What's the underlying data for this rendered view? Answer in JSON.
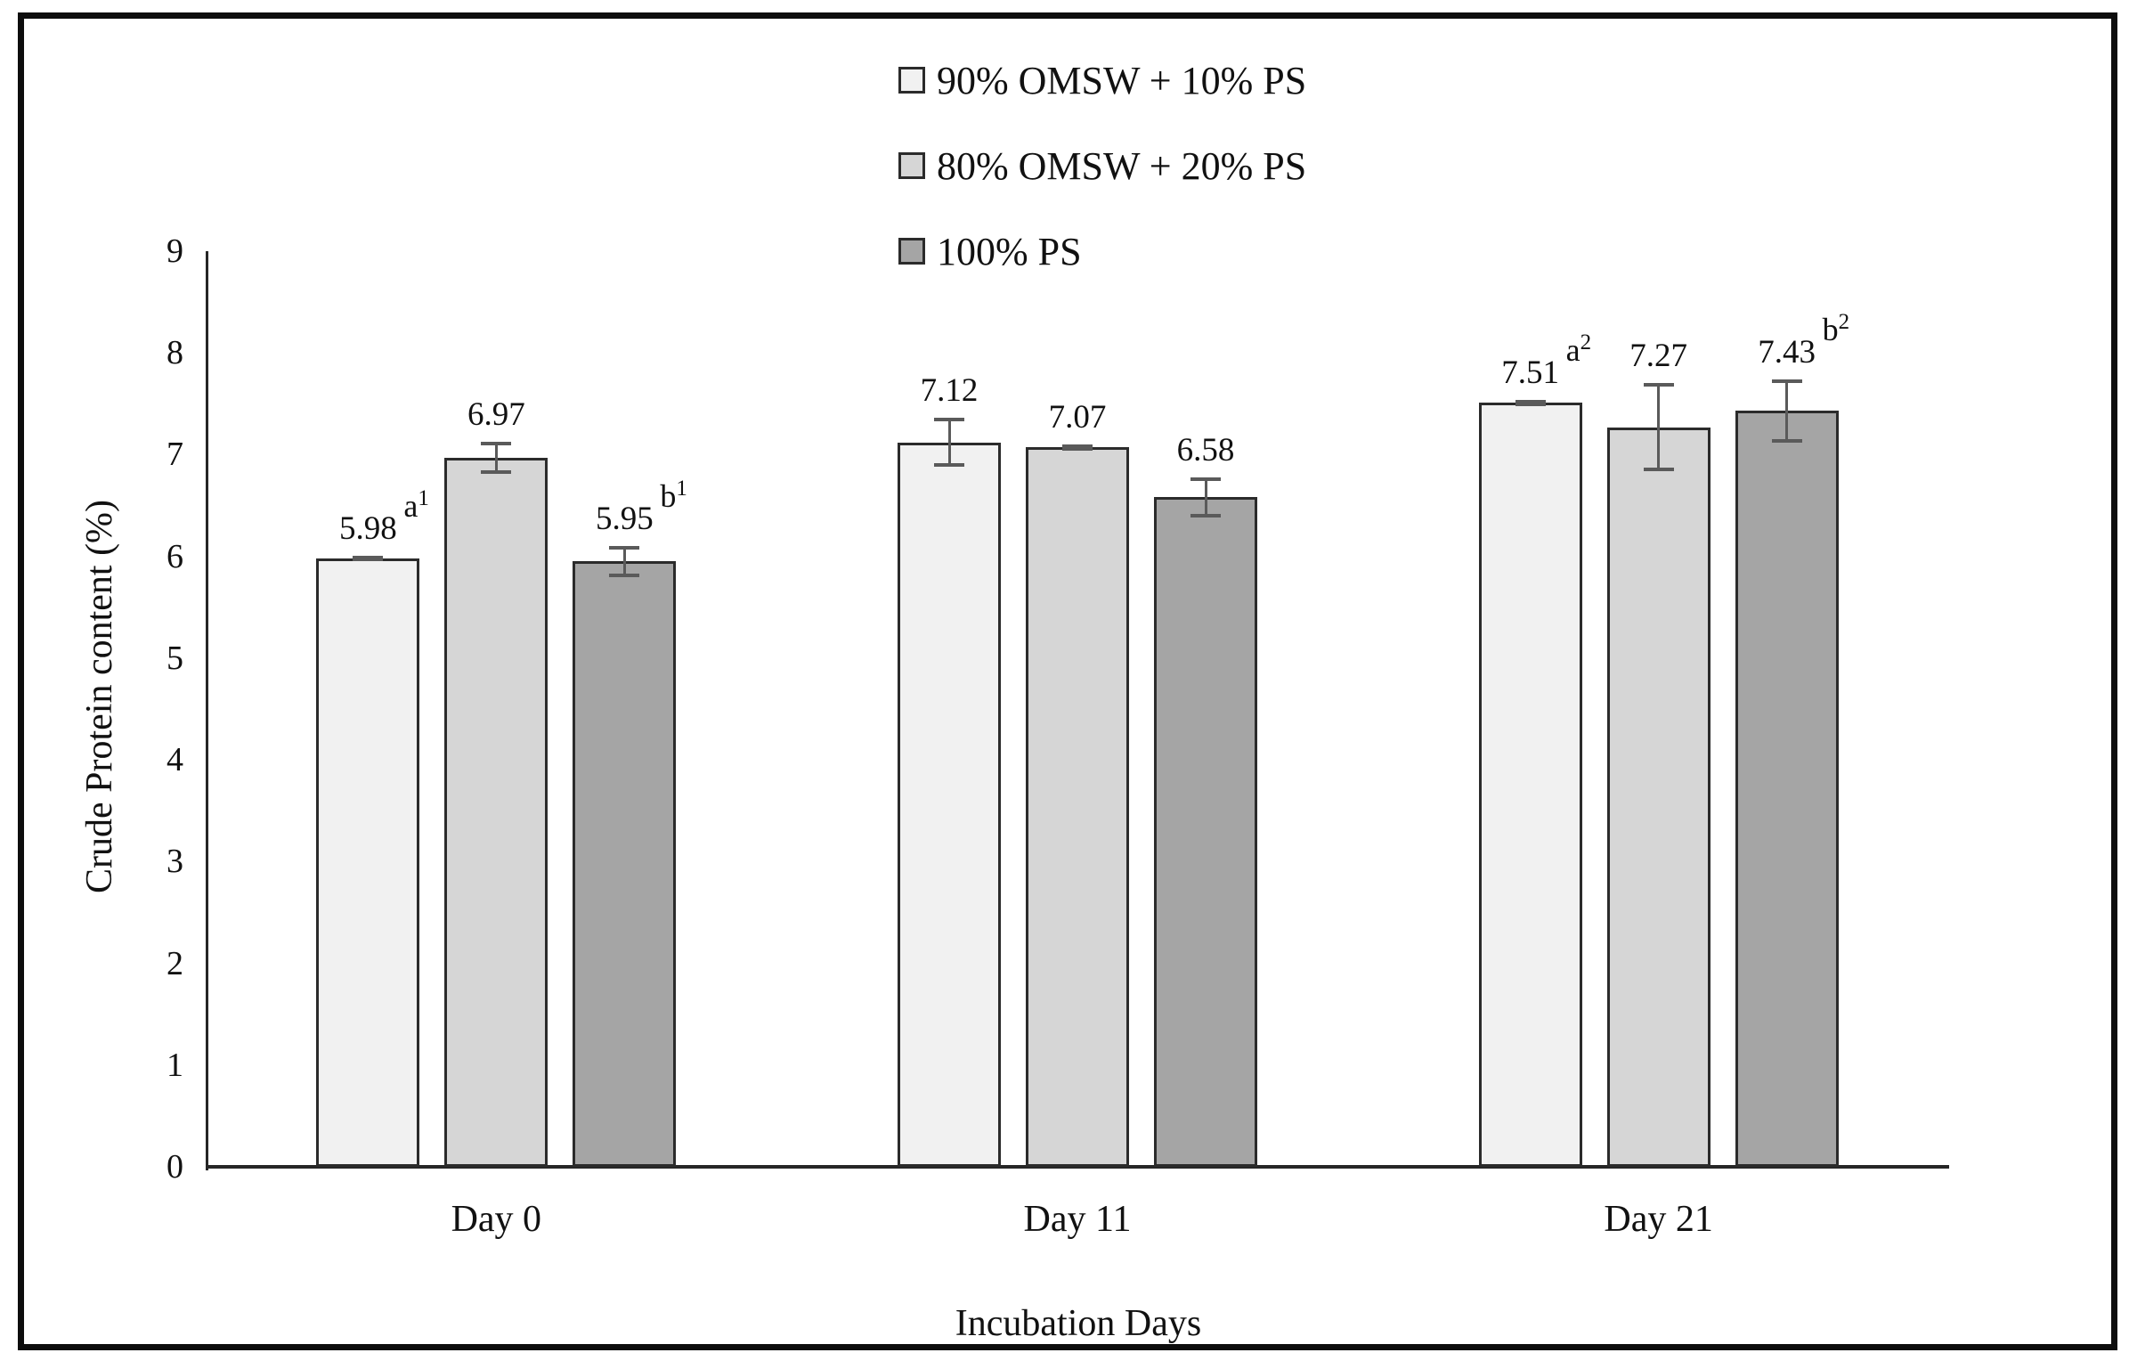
{
  "figure": {
    "kind": "grouped bar chart with error bars",
    "border_color": "#0d0d0d",
    "background": "#ffffff"
  },
  "chart_data": {
    "type": "bar",
    "title": "",
    "xlabel": "Incubation Days",
    "ylabel": "Crude Protein content (%)",
    "ylim": [
      0,
      9
    ],
    "yticks": [
      "0",
      "1",
      "2",
      "3",
      "4",
      "5",
      "6",
      "7",
      "8",
      "9"
    ],
    "grid": false,
    "legend_position": "top-center",
    "bar_border_color": "#2b2b2b",
    "error_bar_color": "#5a5a5a",
    "axis_color": "#262626",
    "text_color": "#111111",
    "categories": [
      "Day 0",
      "Day 11",
      "Day 21"
    ],
    "series": [
      {
        "name": "90% OMSW + 10% PS",
        "fill": "#f1f1f1",
        "values": [
          5.98,
          7.12,
          7.51
        ],
        "labels": [
          "5.98",
          "7.12",
          "7.51"
        ],
        "errors": [
          0.03,
          0.24,
          0.03
        ],
        "annotations": [
          {
            "base": "a",
            "sup": "1"
          },
          null,
          {
            "base": "a",
            "sup": "2"
          }
        ]
      },
      {
        "name": "80% OMSW + 20% PS",
        "fill": "#d6d6d6",
        "values": [
          6.97,
          7.07,
          7.27
        ],
        "labels": [
          "6.97",
          "7.07",
          "7.27"
        ],
        "errors": [
          0.16,
          0.03,
          0.43
        ],
        "annotations": [
          null,
          null,
          null
        ]
      },
      {
        "name": "100% PS",
        "fill": "#a5a5a5",
        "values": [
          5.95,
          6.58,
          7.43
        ],
        "labels": [
          "5.95",
          "6.58",
          "7.43"
        ],
        "errors": [
          0.15,
          0.2,
          0.31
        ],
        "annotations": [
          {
            "base": "b",
            "sup": "1"
          },
          null,
          {
            "base": "b",
            "sup": "2"
          }
        ]
      }
    ]
  }
}
